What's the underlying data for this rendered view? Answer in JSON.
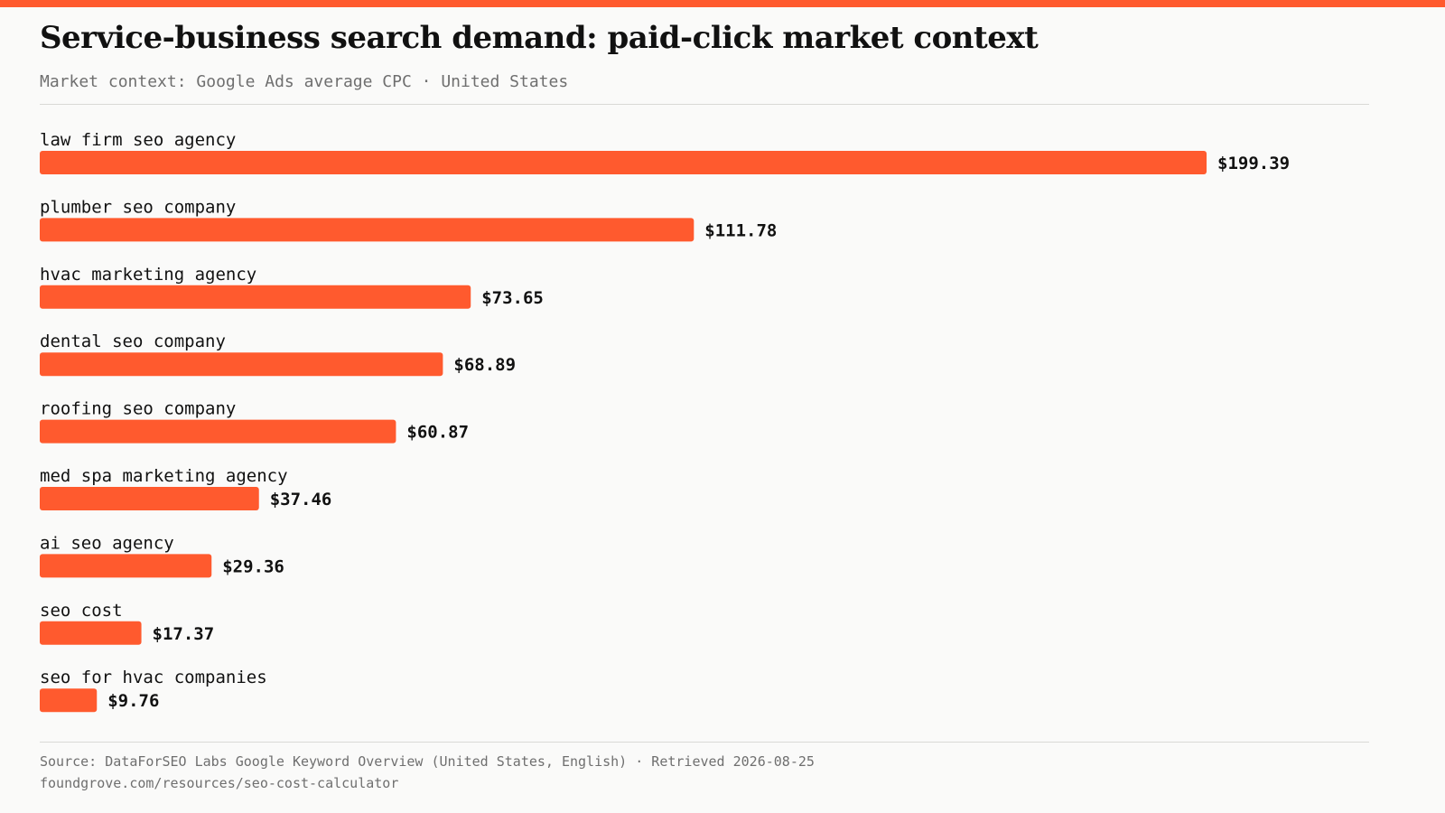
{
  "title": "Service-business search demand: paid-click market context",
  "subtitle": "Market context: Google Ads average CPC · United States",
  "footer": {
    "source": "Source: DataForSEO Labs Google Keyword Overview (United States, English) · Retrieved 2026-08-25",
    "url": "foundgrove.com/resources/seo-cost-calculator"
  },
  "colors": {
    "accent": "#FF5A2E",
    "background": "#FAFAF9",
    "text": "#111111",
    "muted": "#6F6F6F",
    "rule": "#D9D9D6"
  },
  "chart_data": {
    "type": "bar",
    "orientation": "horizontal",
    "title": "Service-business search demand: paid-click market context",
    "subtitle": "Market context: Google Ads average CPC · United States",
    "categories": [
      "law firm seo agency",
      "plumber seo company",
      "hvac marketing agency",
      "dental seo company",
      "roofing seo company",
      "med spa marketing agency",
      "ai seo agency",
      "seo cost",
      "seo for hvac companies"
    ],
    "values": [
      199.39,
      111.78,
      73.65,
      68.89,
      60.87,
      37.46,
      29.36,
      17.37,
      9.76
    ],
    "value_labels": [
      "$199.39",
      "$111.78",
      "$73.65",
      "$68.89",
      "$60.87",
      "$37.46",
      "$29.36",
      "$17.37",
      "$9.76"
    ],
    "xlim": [
      0,
      199.39
    ],
    "grid": false,
    "legend": false
  }
}
